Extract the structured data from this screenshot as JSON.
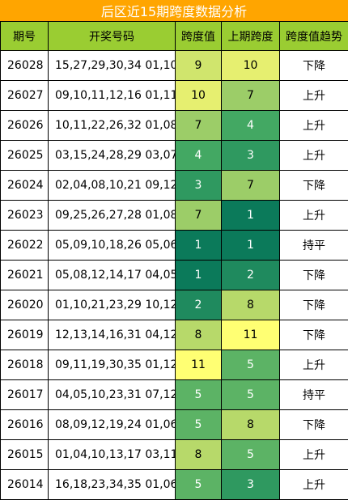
{
  "title": "后区近15期跨度数据分析",
  "headers": [
    "期号",
    "开奖号码",
    "跨度值",
    "上期跨度",
    "跨度值趋势"
  ],
  "rows": [
    {
      "period": "26028",
      "numbers": "15,27,29,30,34 01,10",
      "span": "9",
      "prev": "10",
      "trend": "下降"
    },
    {
      "period": "26027",
      "numbers": "09,10,11,12,16 01,11",
      "span": "10",
      "prev": "7",
      "trend": "上升"
    },
    {
      "period": "26026",
      "numbers": "10,11,22,26,32 01,08",
      "span": "7",
      "prev": "4",
      "trend": "上升"
    },
    {
      "period": "26025",
      "numbers": "03,15,24,28,29 03,07",
      "span": "4",
      "prev": "3",
      "trend": "上升"
    },
    {
      "period": "26024",
      "numbers": "02,04,08,10,21 09,12",
      "span": "3",
      "prev": "7",
      "trend": "下降"
    },
    {
      "period": "26023",
      "numbers": "09,25,26,27,28 01,08",
      "span": "7",
      "prev": "1",
      "trend": "上升"
    },
    {
      "period": "26022",
      "numbers": "05,09,10,18,26 05,06",
      "span": "1",
      "prev": "1",
      "trend": "持平"
    },
    {
      "period": "26021",
      "numbers": "05,08,12,14,17 04,05",
      "span": "1",
      "prev": "2",
      "trend": "下降"
    },
    {
      "period": "26020",
      "numbers": "01,10,21,23,29 10,12",
      "span": "2",
      "prev": "8",
      "trend": "下降"
    },
    {
      "period": "26019",
      "numbers": "12,13,14,16,31 04,12",
      "span": "8",
      "prev": "11",
      "trend": "下降"
    },
    {
      "period": "26018",
      "numbers": "09,11,19,30,35 01,12",
      "span": "11",
      "prev": "5",
      "trend": "上升"
    },
    {
      "period": "26017",
      "numbers": "04,05,10,23,31 07,12",
      "span": "5",
      "prev": "5",
      "trend": "持平"
    },
    {
      "period": "26016",
      "numbers": "08,09,12,19,24 01,06",
      "span": "5",
      "prev": "8",
      "trend": "下降"
    },
    {
      "period": "26015",
      "numbers": "01,04,10,13,17 03,11",
      "span": "8",
      "prev": "5",
      "trend": "上升"
    },
    {
      "period": "26014",
      "numbers": "16,18,23,34,35 01,06",
      "span": "5",
      "prev": "3",
      "trend": "上升"
    }
  ],
  "colors": {
    "title_bg": "#ffa500",
    "header_bg": "#9acd32",
    "span_scale": {
      "1": "#0b7a5a",
      "2": "#1f8a5e",
      "3": "#2f9960",
      "4": "#43a863",
      "5": "#5cb365",
      "7": "#9ccd68",
      "8": "#b7d96a",
      "9": "#d0e56d",
      "10": "#e6ef70",
      "11": "#ffff73"
    }
  }
}
